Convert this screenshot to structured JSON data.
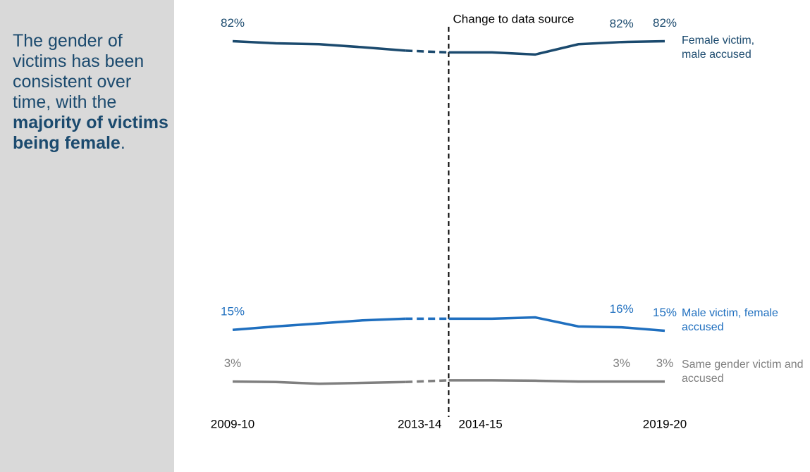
{
  "sidebar": {
    "text": "The gender of victims has been consistent over time, with the ",
    "bold": "majority of victims being female",
    "end": "."
  },
  "chart_data": {
    "type": "line",
    "categories": [
      "2009-10",
      null,
      null,
      null,
      "2013-14",
      "2014-15",
      null,
      null,
      null,
      null,
      "2019-20"
    ],
    "source_change": {
      "label": "Change to data source",
      "between": [
        "2013-14",
        "2014-15"
      ]
    },
    "ylim": [
      0,
      86
    ],
    "series": [
      {
        "name": "Female victim, male accused",
        "color": "#1b4a6e",
        "values": [
          82,
          81.5,
          81.3,
          80.6,
          79.8,
          79.4,
          79.4,
          78.9,
          81.3,
          81.8,
          82
        ],
        "value_labels": [
          "82%",
          null,
          null,
          null,
          null,
          null,
          null,
          null,
          null,
          "82%",
          "82%"
        ]
      },
      {
        "name": "Male victim, female accused",
        "color": "#1f6fbf",
        "values": [
          15,
          15.8,
          16.5,
          17.2,
          17.6,
          17.6,
          17.6,
          17.9,
          15.8,
          15.6,
          14.8
        ],
        "value_labels": [
          "15%",
          null,
          null,
          null,
          null,
          null,
          null,
          null,
          null,
          "16%",
          "15%"
        ]
      },
      {
        "name": "Same gender victim and accused",
        "color": "#7f7f7f",
        "values": [
          3,
          2.9,
          2.5,
          2.7,
          2.9,
          3.3,
          3.3,
          3.2,
          3,
          3,
          3
        ],
        "value_labels": [
          "3%",
          null,
          null,
          null,
          null,
          null,
          null,
          null,
          null,
          "3%",
          "3%"
        ]
      }
    ]
  }
}
